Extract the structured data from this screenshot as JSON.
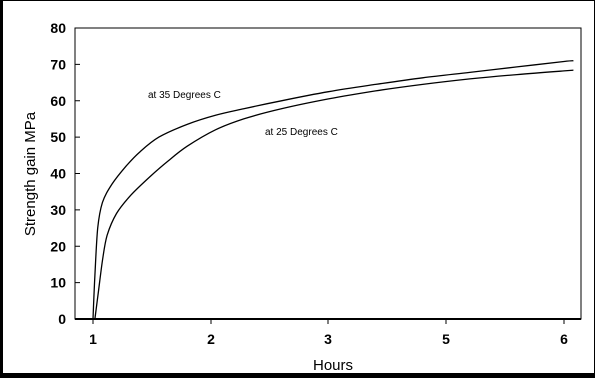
{
  "chart_data": {
    "type": "line",
    "title": "",
    "xlabel": "Hours",
    "ylabel": "Strength gain MPa",
    "x_tick_labels": [
      "1",
      "2",
      "3",
      "5",
      "6"
    ],
    "y_ticks": [
      0,
      10,
      20,
      30,
      40,
      50,
      60,
      70,
      80
    ],
    "ylim": [
      0,
      80
    ],
    "grid": false,
    "legend": "none",
    "annotations": [
      {
        "text": "at  35 Degrees C",
        "series": 0
      },
      {
        "text": "at  25 Degrees C",
        "series": 1
      }
    ],
    "series": [
      {
        "name": "at  35 Degrees C",
        "color": "#000000",
        "x_position": [
          1.0,
          1.02,
          1.05,
          1.1,
          1.2,
          1.35,
          1.5,
          1.7,
          2.0,
          2.3,
          2.6,
          3.0,
          3.5,
          4.0,
          4.5,
          5.0,
          5.5,
          6.0,
          6.1
        ],
        "values": [
          0,
          12,
          25,
          32,
          37,
          42,
          46,
          50,
          53.5,
          56,
          57.8,
          60,
          62.5,
          64.5,
          66.3,
          67.8,
          69.3,
          70.8,
          71
        ]
      },
      {
        "name": "at  25 Degrees C",
        "color": "#000000",
        "x_position": [
          1.02,
          1.05,
          1.1,
          1.15,
          1.25,
          1.4,
          1.6,
          1.8,
          2.0,
          2.3,
          2.6,
          3.0,
          3.5,
          4.0,
          4.5,
          5.0,
          5.5,
          6.0,
          6.1
        ],
        "values": [
          0,
          6,
          16,
          23,
          29,
          34,
          39,
          43.5,
          47.5,
          52,
          55,
          57.8,
          60.5,
          62.7,
          64.5,
          66,
          67.2,
          68.2,
          68.4
        ]
      }
    ]
  }
}
